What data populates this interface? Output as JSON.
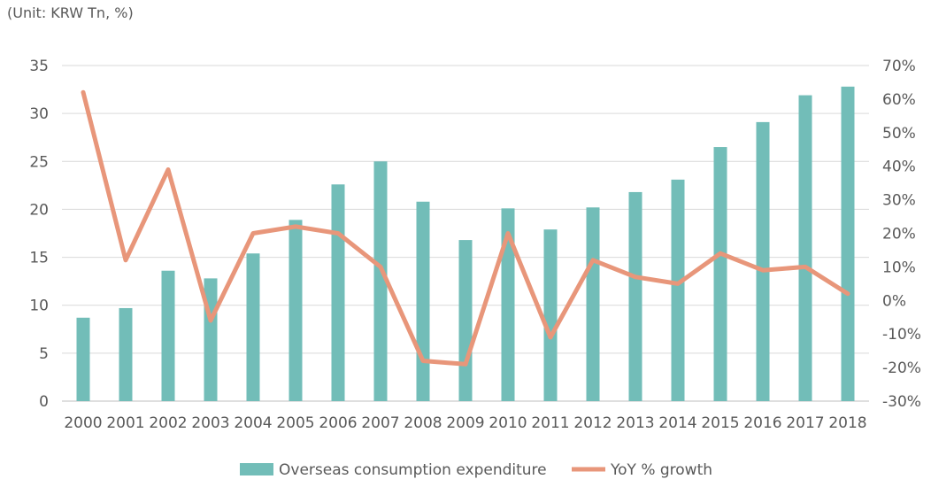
{
  "chart_data": {
    "type": "bar",
    "unit_label": "(Unit: KRW Tn, %)",
    "title": "",
    "categories": [
      "2000",
      "2001",
      "2002",
      "2003",
      "2004",
      "2005",
      "2006",
      "2007",
      "2008",
      "2009",
      "2010",
      "2011",
      "2012",
      "2013",
      "2014",
      "2015",
      "2016",
      "2017",
      "2018"
    ],
    "series": [
      {
        "name": "Overseas consumption expenditure",
        "type": "bar",
        "axis": "left",
        "color": "#72BDB8",
        "values": [
          8.7,
          9.7,
          13.6,
          12.8,
          15.4,
          18.9,
          22.6,
          25.0,
          20.8,
          16.8,
          20.1,
          17.9,
          20.2,
          21.8,
          23.1,
          26.5,
          29.1,
          31.9,
          32.8
        ]
      },
      {
        "name": "YoY % growth",
        "type": "line",
        "axis": "right",
        "color": "#E8967A",
        "values": [
          62,
          12,
          39,
          -6,
          20,
          22,
          20,
          10,
          -18,
          -19,
          20,
          -11,
          12,
          7,
          5,
          14,
          9,
          10,
          2
        ]
      }
    ],
    "y_left": {
      "min": 0,
      "max": 35,
      "step": 5,
      "ticks": [
        "0",
        "5",
        "10",
        "15",
        "20",
        "25",
        "30",
        "35"
      ]
    },
    "y_right": {
      "min": -30,
      "max": 70,
      "step": 10,
      "ticks": [
        "-30%",
        "-20%",
        "-10%",
        "0%",
        "10%",
        "20%",
        "30%",
        "40%",
        "50%",
        "60%",
        "70%"
      ]
    },
    "grid": true,
    "legend_position": "bottom"
  }
}
